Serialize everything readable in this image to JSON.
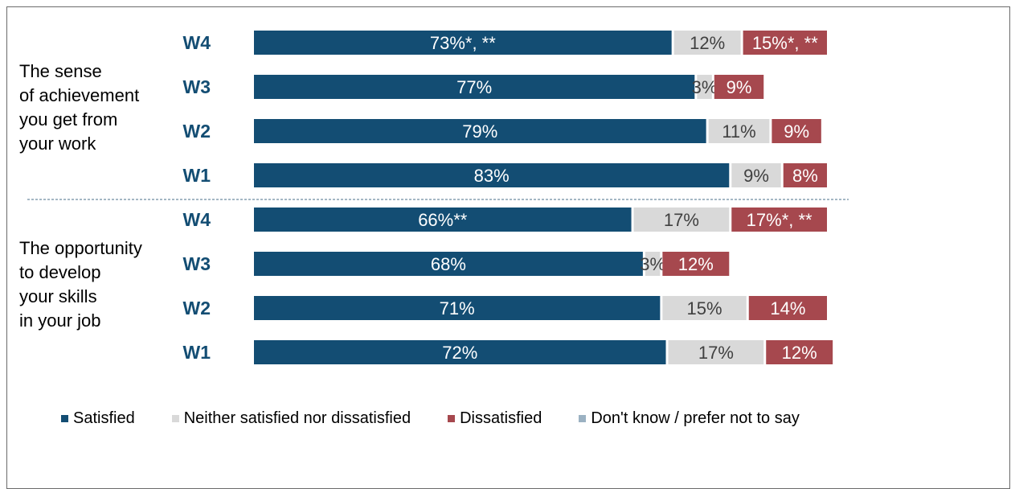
{
  "colors": {
    "satisfied": "#134d73",
    "neither": "#d9d9d9",
    "dissatisfied": "#a6484e",
    "dont_know": "#9bb1c2",
    "divider": "#4a6f8a",
    "wave_label": "#134d73"
  },
  "chart_data": {
    "type": "bar",
    "orientation": "horizontal",
    "stacked": true,
    "xlim": [
      0,
      100
    ],
    "groups": [
      {
        "label": "The sense\nof achievement\nyou get from\nyour work",
        "rows": [
          {
            "wave": "W4",
            "values": [
              73,
              12,
              15
            ],
            "labels": [
              "73%*, **",
              "12%",
              "15%*, **"
            ]
          },
          {
            "wave": "W3",
            "values": [
              77,
              3,
              9
            ],
            "labels": [
              "77%",
              "3%",
              "9%"
            ]
          },
          {
            "wave": "W2",
            "values": [
              79,
              11,
              9
            ],
            "labels": [
              "79%",
              "11%",
              "9%"
            ]
          },
          {
            "wave": "W1",
            "values": [
              83,
              9,
              8
            ],
            "labels": [
              "83%",
              "9%",
              "8%"
            ]
          }
        ]
      },
      {
        "label": "The opportunity\nto develop\nyour skills\nin your job",
        "rows": [
          {
            "wave": "W4",
            "values": [
              66,
              17,
              17
            ],
            "labels": [
              "66%**",
              "17%",
              "17%*, **"
            ]
          },
          {
            "wave": "W3",
            "values": [
              68,
              3,
              12
            ],
            "labels": [
              "68%",
              "3%",
              "12%"
            ]
          },
          {
            "wave": "W2",
            "values": [
              71,
              15,
              14
            ],
            "labels": [
              "71%",
              "15%",
              "14%"
            ]
          },
          {
            "wave": "W1",
            "values": [
              72,
              17,
              12
            ],
            "labels": [
              "72%",
              "17%",
              "12%"
            ]
          }
        ]
      }
    ],
    "legend": {
      "position": "bottom",
      "entries": [
        "Satisfied",
        "Neither satisfied nor dissatisfied",
        "Dissatisfied",
        "Don't know / prefer not to say"
      ]
    }
  }
}
